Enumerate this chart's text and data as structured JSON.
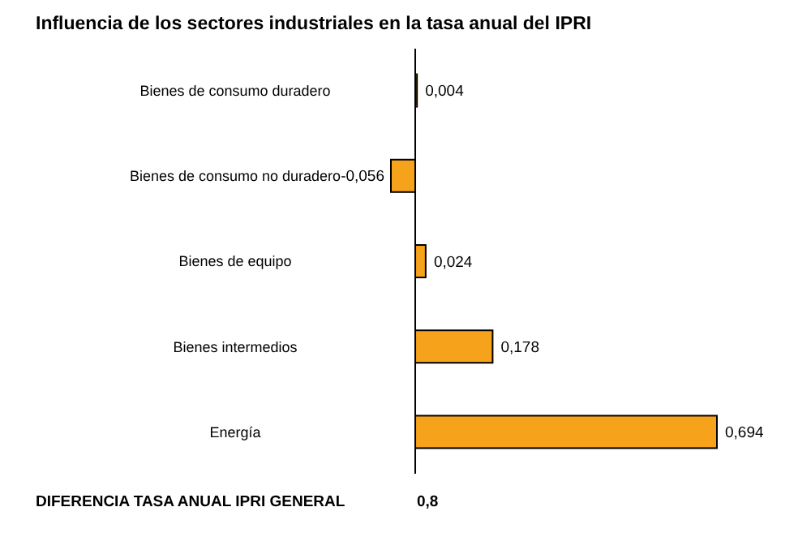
{
  "chart_data": {
    "type": "bar",
    "orientation": "horizontal",
    "title": "Influencia de los sectores industriales en la tasa anual del IPRI",
    "categories": [
      "Bienes de consumo duradero",
      "Bienes de consumo no duradero",
      "Bienes de equipo",
      "Bienes intermedios",
      "Energía"
    ],
    "values": [
      0.004,
      -0.056,
      0.024,
      0.178,
      0.694
    ],
    "value_labels": [
      "0,004",
      "-0,056",
      "0,024",
      "0,178",
      "0,694"
    ],
    "color": "#f7a21b",
    "annotations": [
      "DIFERENCIA TASA ANUAL IPRI GENERAL",
      "0,8"
    ]
  }
}
